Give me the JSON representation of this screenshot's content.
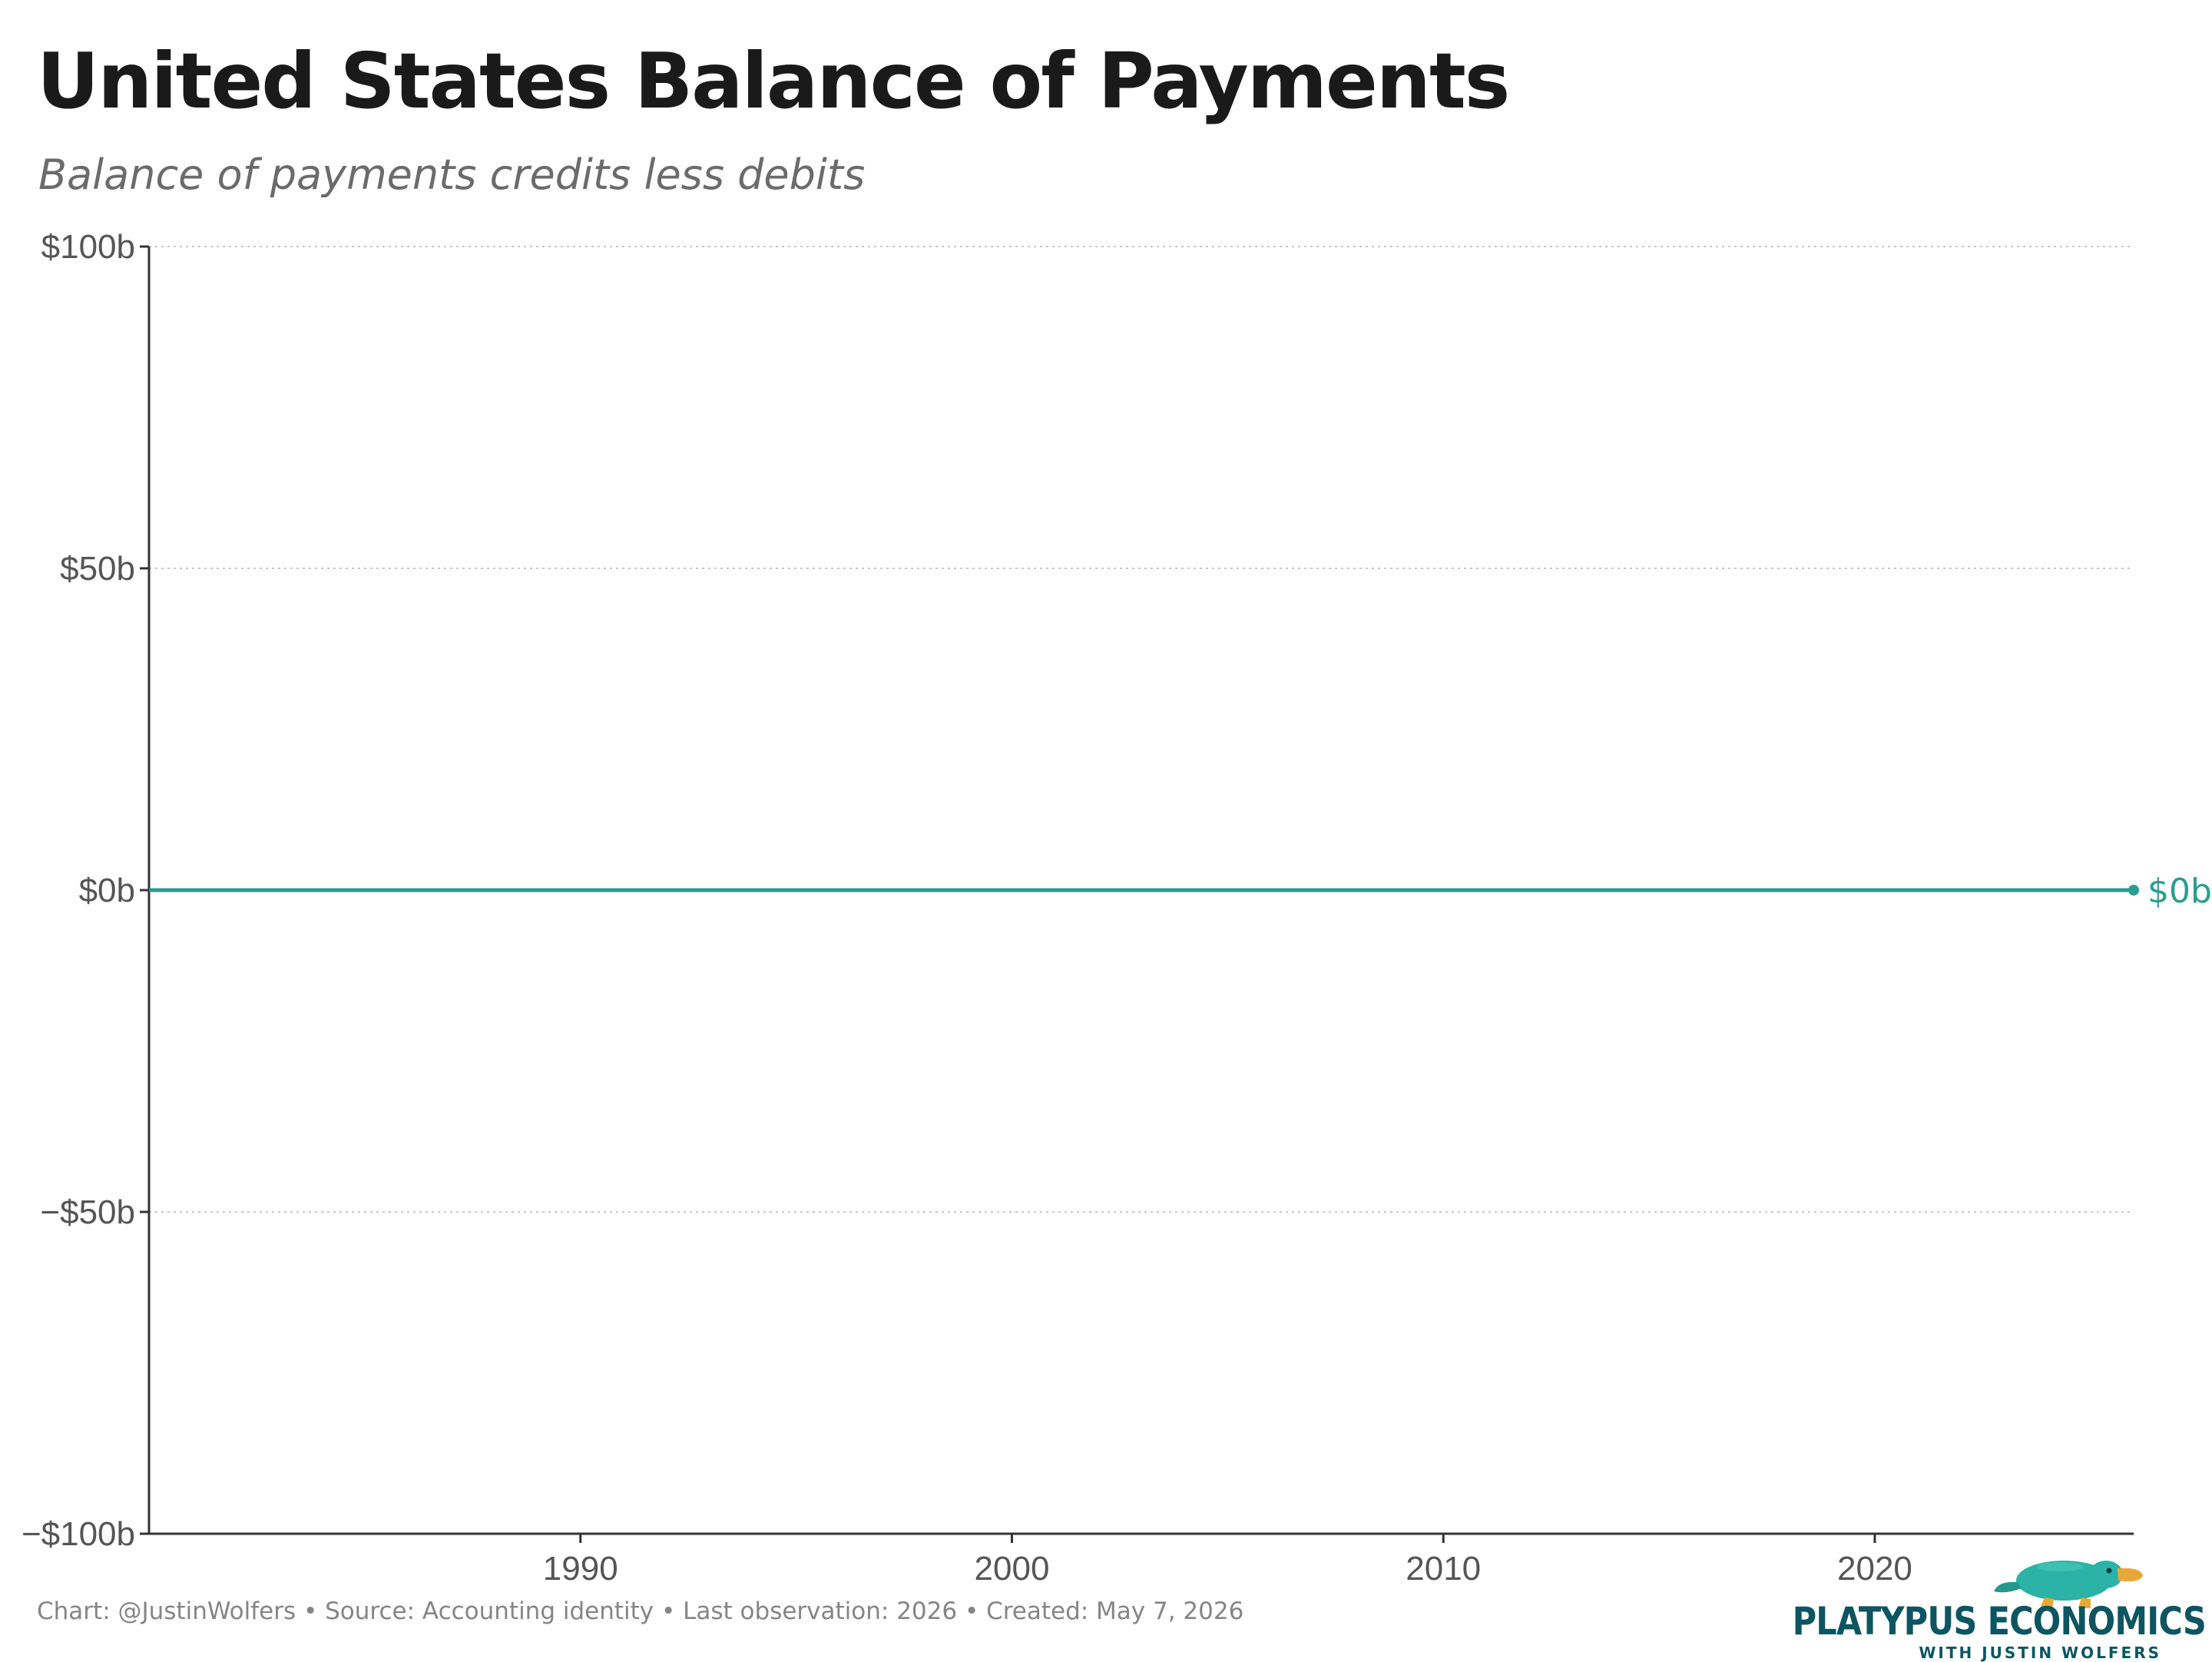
{
  "chart_data": {
    "type": "line",
    "title": "United States Balance of Payments",
    "subtitle": "Balance of payments credits less debits",
    "xlim": [
      1980,
      2026
    ],
    "ylim": [
      -100,
      100
    ],
    "x_ticks": [
      "1990",
      "2000",
      "2010",
      "2020"
    ],
    "x_tick_values": [
      1990,
      2000,
      2010,
      2020
    ],
    "y_ticks": [
      "$100b",
      "$50b",
      "$0b",
      "−$50b",
      "−$100b"
    ],
    "y_tick_values": [
      100,
      50,
      0,
      -50,
      -100
    ],
    "grid": "horizontal dotted",
    "series": [
      {
        "x": [
          1980,
          2026
        ],
        "y": [
          0,
          0
        ],
        "end_label": "$0b"
      }
    ]
  },
  "footer": "Chart: @JustinWolfers • Source: Accounting identity • Last observation: 2026 • Created: May 7, 2026",
  "logo": {
    "name": "PLATYPUS ECONOMICS",
    "tagline": "WITH JUSTIN WOLFERS",
    "icon": "platypus-icon"
  },
  "colors": {
    "series": "#2a9d8f",
    "axis": "#333333",
    "grid": "#c8c8c8",
    "logo_text": "#0d5560",
    "logo_icon": "#2ab3a6",
    "logo_bill": "#e7a83a"
  }
}
